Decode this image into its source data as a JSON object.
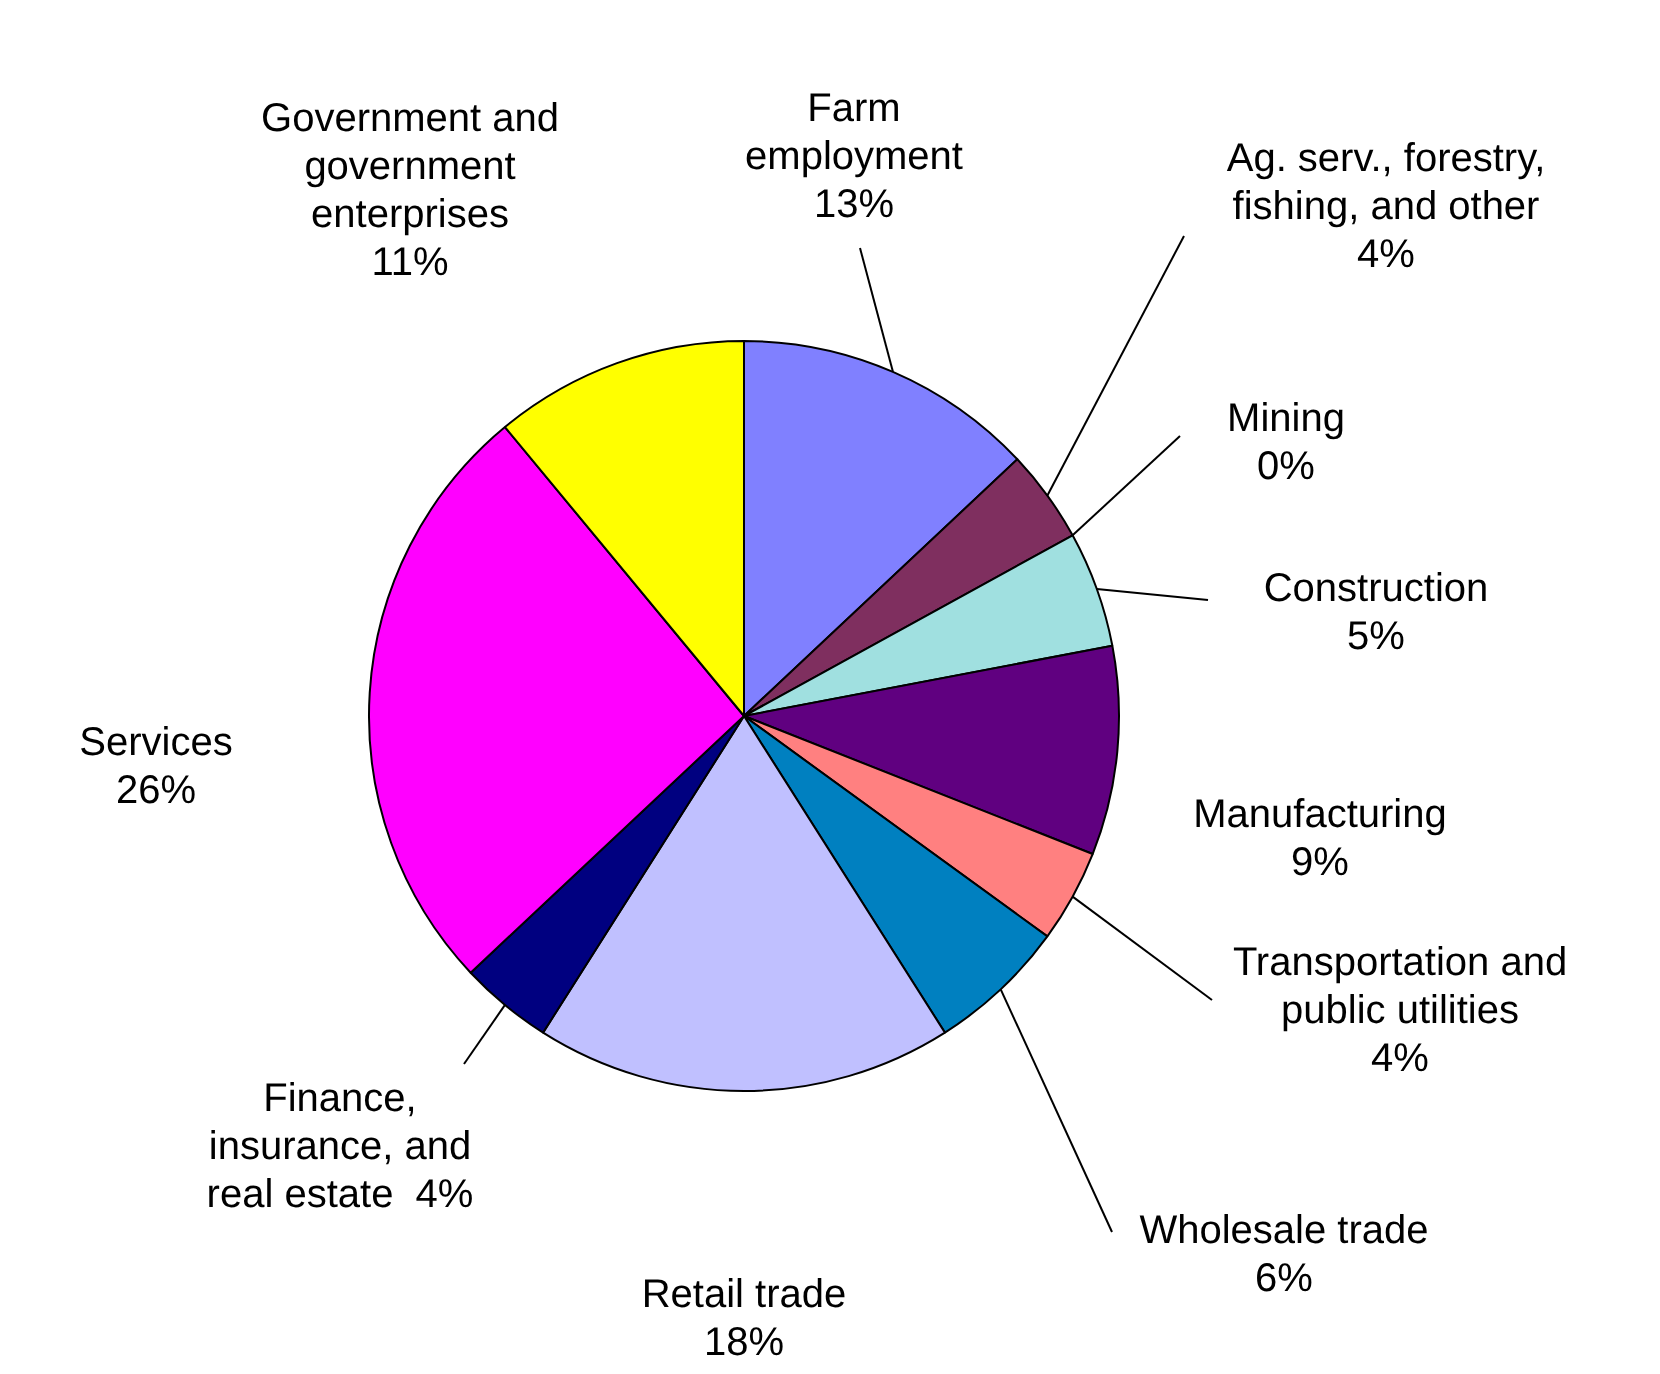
{
  "chart_data": {
    "type": "pie",
    "categories": [
      "Farm employment",
      "Ag. serv., forestry, fishing, and other",
      "Mining",
      "Construction",
      "Manufacturing",
      "Transportation and public utilities",
      "Wholesale trade",
      "Retail trade",
      "Finance, insurance, and real estate",
      "Services",
      "Government and government enterprises"
    ],
    "values": [
      13,
      4,
      0,
      5,
      9,
      4,
      6,
      18,
      4,
      26,
      11
    ],
    "colors": [
      "#8080ff",
      "#7f2f5f",
      "#ff0000",
      "#a0e0e0",
      "#600080",
      "#ff8080",
      "#0080c0",
      "#c0c0ff",
      "#000080",
      "#ff00ff",
      "#ffff00"
    ],
    "value_labels": [
      "13%",
      "4%",
      "0%",
      "5%",
      "9%",
      "4%",
      "6%",
      "18%",
      "4%",
      "26%",
      "11%"
    ]
  }
}
